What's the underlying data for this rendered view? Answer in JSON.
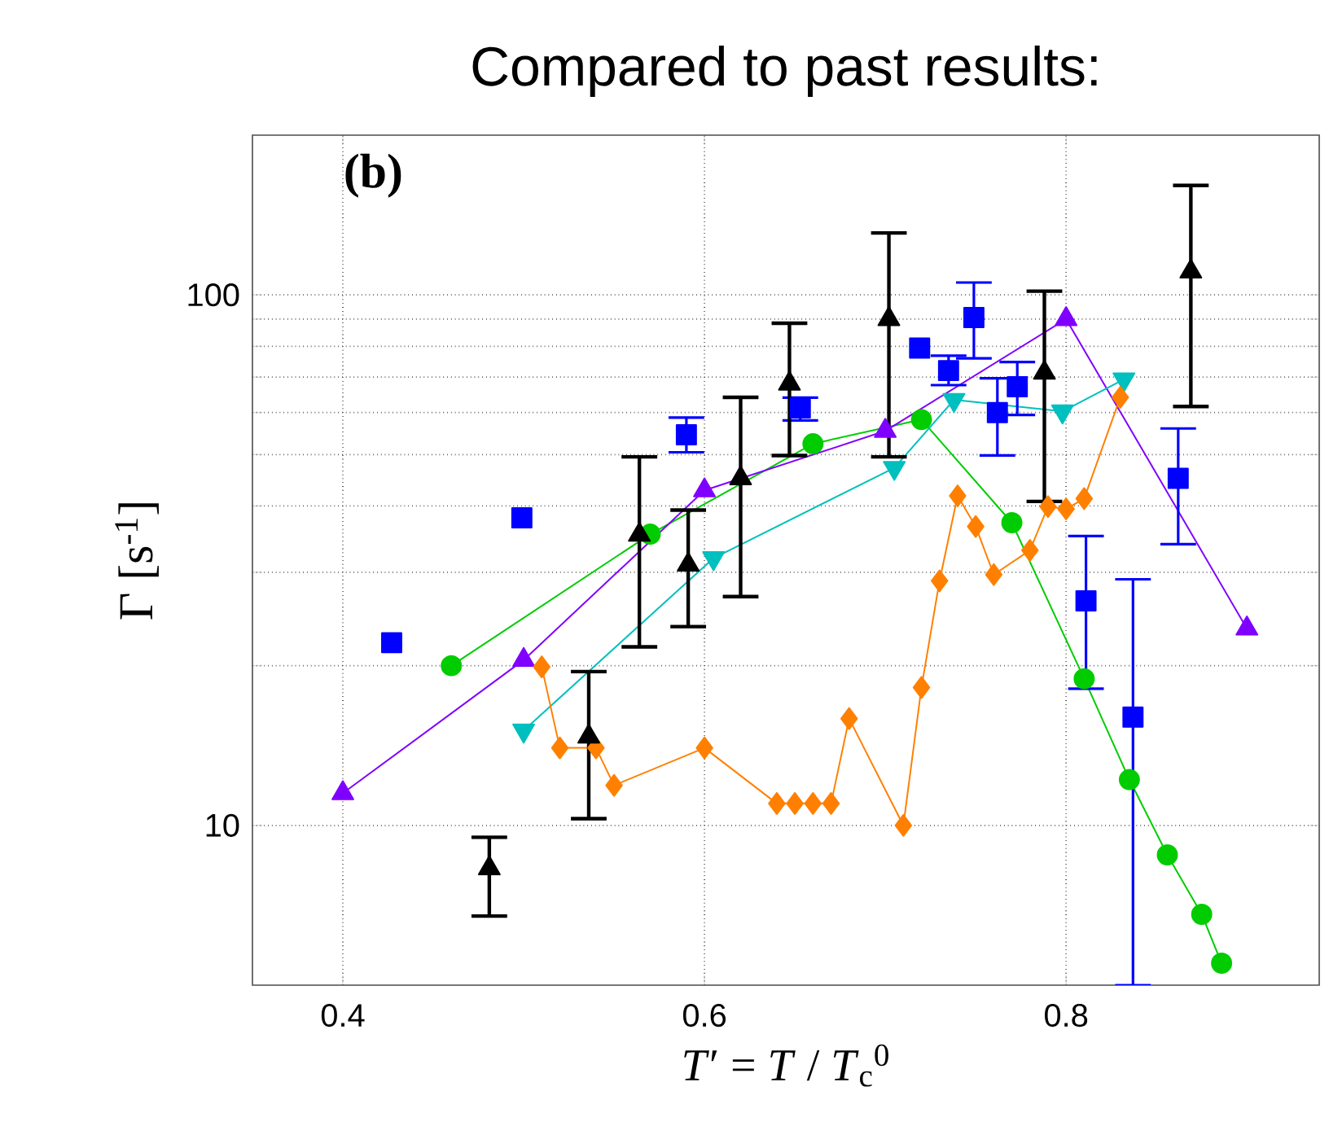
{
  "chart_data": {
    "type": "line",
    "title": "Compared to past results:",
    "xlabel": "*T*′ = *T* / *T*$_{c}$$^{0}$",
    "ylabel": "Γ [s$^{-1}$]",
    "annotations": [
      "(b)"
    ],
    "log": "y",
    "grid": true,
    "xlim": [
      0.35,
      0.94
    ],
    "ylim": [
      5,
      200
    ],
    "xticks": [
      0.4,
      0.6,
      0.8
    ],
    "yticks": [
      10,
      {
        "value": 20,
        "label": null
      },
      {
        "value": 30,
        "label": null
      },
      {
        "value": 40,
        "label": null
      },
      {
        "value": 50,
        "label": null
      },
      {
        "value": 60,
        "label": null
      },
      {
        "value": 70,
        "label": null
      },
      {
        "value": 80,
        "label": null
      },
      {
        "value": 90,
        "label": null
      },
      100
    ],
    "series": [
      {
        "color": "#00cc00",
        "marker": "circle",
        "x": [
          0.46,
          0.57,
          0.66,
          0.72,
          0.77,
          0.81,
          0.835,
          0.856,
          0.875,
          0.886
        ],
        "values": [
          20,
          35.4,
          52.4,
          58.2,
          37.2,
          18.9,
          12.2,
          8.8,
          6.8,
          5.5
        ]
      },
      {
        "color": "#8000ff",
        "marker": "triangle",
        "x": [
          0.4,
          0.5,
          0.6,
          0.7,
          0.8,
          0.9
        ],
        "values": [
          11.5,
          20.5,
          42.8,
          55.4,
          90,
          23.5
        ]
      },
      {
        "color": "#00bfbf",
        "marker": "triangle-down",
        "x": [
          0.5,
          0.605,
          0.705,
          0.738,
          0.798,
          0.832
        ],
        "values": [
          15.1,
          31.9,
          47.2,
          63.4,
          60.3,
          69.3
        ]
      },
      {
        "color": "#ff8000",
        "marker": "diamond",
        "x": [
          0.51,
          0.52,
          0.54,
          0.55,
          0.6,
          0.64,
          0.65,
          0.66,
          0.67,
          0.68,
          0.71,
          0.72,
          0.73,
          0.74,
          0.75,
          0.76,
          0.78,
          0.79,
          0.8,
          0.81,
          0.83
        ],
        "values": [
          19.9,
          14,
          14,
          11.9,
          14,
          11,
          11,
          11,
          11,
          15.9,
          10,
          18.2,
          28.9,
          41.8,
          36.6,
          29.7,
          33,
          39.9,
          39.5,
          41.3,
          64.1
        ]
      },
      {
        "type": "scatter",
        "color": "#0000ff",
        "marker": "square",
        "x": [
          0.427,
          0.499,
          0.59,
          0.653,
          0.719,
          0.735,
          0.749,
          0.762,
          0.773,
          0.811,
          0.837,
          0.862
        ],
        "values": [
          22.1,
          38,
          54.5,
          61.2,
          79.4,
          72,
          90.6,
          60,
          67.1,
          26.5,
          16,
          45.1
        ],
        "errors": [
          null,
          null,
          [
            50.5,
            58.7
          ],
          [
            58,
            64
          ],
          null,
          [
            67.6,
            76.8
          ],
          [
            75.9,
            105.5
          ],
          [
            49.8,
            69.6
          ],
          [
            59.4,
            74.7
          ],
          [
            18.1,
            35.1
          ],
          [
            5,
            29.1
          ],
          [
            33.9,
            56
          ]
        ]
      },
      {
        "type": "scatter",
        "color": "#000000",
        "marker": "triangle",
        "x": [
          0.481,
          0.536,
          0.564,
          0.591,
          0.62,
          0.647,
          0.702,
          0.788,
          0.869
        ],
        "values": [
          8.3,
          14.7,
          35.3,
          31,
          45.1,
          68,
          90,
          71.3,
          110.6
        ],
        "errors": [
          [
            6.75,
            9.5
          ],
          [
            10.3,
            19.5
          ],
          [
            21.7,
            49.5
          ],
          [
            23.7,
            39.3
          ],
          [
            27,
            64.1
          ],
          [
            49.8,
            88.4
          ],
          [
            49.5,
            130.8
          ],
          [
            40.8,
            101.6
          ],
          [
            61.6,
            160.8
          ]
        ]
      }
    ]
  }
}
